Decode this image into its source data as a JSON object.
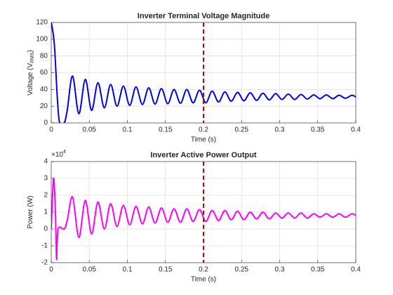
{
  "chart_data": [
    {
      "type": "line",
      "title": "Inverter Terminal Voltage Magnitude",
      "xlabel": "Time (s)",
      "ylabel": "Voltage (V",
      "ylabel_sub": "RMS",
      "ylabel_end": ")",
      "xlim": [
        0,
        0.4
      ],
      "xticks": [
        0,
        0.05,
        0.1,
        0.15,
        0.2,
        0.25,
        0.3,
        0.35,
        0.4
      ],
      "ylim": [
        0,
        120
      ],
      "yticks": [
        0,
        20,
        40,
        60,
        80,
        100,
        120
      ],
      "grid": true,
      "vline": {
        "x": 0.2,
        "color": "#cc0000"
      },
      "x": [
        0,
        0.004,
        0.008,
        0.011,
        0.017,
        0.021,
        0.028,
        0.0363,
        0.0447,
        0.053,
        0.0613,
        0.0697,
        0.078,
        0.0863,
        0.0947,
        0.103,
        0.1113,
        0.1197,
        0.128,
        0.1363,
        0.1447,
        0.153,
        0.1613,
        0.1697,
        0.178,
        0.1863,
        0.1947,
        0.203,
        0.2113,
        0.2197,
        0.228,
        0.2363,
        0.2447,
        0.253,
        0.2613,
        0.2697,
        0.278,
        0.2863,
        0.2947,
        0.303,
        0.3113,
        0.3197,
        0.328,
        0.3363,
        0.3447,
        0.353,
        0.3613,
        0.3697,
        0.378,
        0.3863,
        0.3947,
        0.4
      ],
      "series": [
        {
          "color": "#0000ee",
          "values": [
            120,
            95,
            30,
            0,
            0,
            15,
            56,
            11,
            52,
            15,
            48,
            18,
            46,
            20,
            44,
            21,
            43,
            22,
            42,
            22.5,
            41,
            23,
            40,
            23.5,
            40,
            24,
            39,
            24,
            38,
            25,
            37,
            26,
            36.5,
            26.5,
            36,
            27,
            35.5,
            27.5,
            35,
            28,
            34.5,
            28,
            34,
            28.5,
            33.5,
            29,
            33.5,
            29,
            33,
            29.5,
            33,
            31
          ]
        }
      ]
    },
    {
      "type": "line",
      "title": "Inverter Active Power Output",
      "xlabel": "Time (s)",
      "ylabel": "Power (W)",
      "exponent_base": "×10",
      "exponent": "4",
      "xlim": [
        0,
        0.4
      ],
      "xticks": [
        0,
        0.05,
        0.1,
        0.15,
        0.2,
        0.25,
        0.3,
        0.35,
        0.4
      ],
      "ylim": [
        -2,
        4
      ],
      "yticks": [
        -2,
        -1,
        0,
        1,
        2,
        3,
        4
      ],
      "grid": true,
      "vline": {
        "x": 0.2,
        "color": "#cc0000"
      },
      "x": [
        0,
        0.003,
        0.0055,
        0.007,
        0.009,
        0.017,
        0.021,
        0.028,
        0.0363,
        0.0447,
        0.053,
        0.0613,
        0.0697,
        0.078,
        0.0863,
        0.0947,
        0.103,
        0.1113,
        0.1197,
        0.128,
        0.1363,
        0.1447,
        0.153,
        0.1613,
        0.1697,
        0.178,
        0.1863,
        0.1947,
        0.203,
        0.2113,
        0.2197,
        0.228,
        0.2363,
        0.2447,
        0.253,
        0.2613,
        0.2697,
        0.278,
        0.2863,
        0.2947,
        0.303,
        0.3113,
        0.3197,
        0.328,
        0.3363,
        0.3447,
        0.353,
        0.3613,
        0.3697,
        0.378,
        0.3863,
        0.3947,
        0.4
      ],
      "series": [
        {
          "color": "#ff00ff",
          "values": [
            0,
            3,
            1,
            -1.8,
            0,
            0,
            0.5,
            1.9,
            -0.5,
            1.7,
            -0.3,
            1.6,
            0,
            1.5,
            0.15,
            1.4,
            0.25,
            1.35,
            0.3,
            1.3,
            0.35,
            1.25,
            0.4,
            1.2,
            0.4,
            1.2,
            0.45,
            1.15,
            0.45,
            1.1,
            0.5,
            1.1,
            0.55,
            1.05,
            0.55,
            1.0,
            0.6,
            1.0,
            0.6,
            0.95,
            0.65,
            0.95,
            0.65,
            0.95,
            0.65,
            0.9,
            0.7,
            0.9,
            0.7,
            0.9,
            0.7,
            0.9,
            0.8
          ]
        }
      ]
    }
  ]
}
